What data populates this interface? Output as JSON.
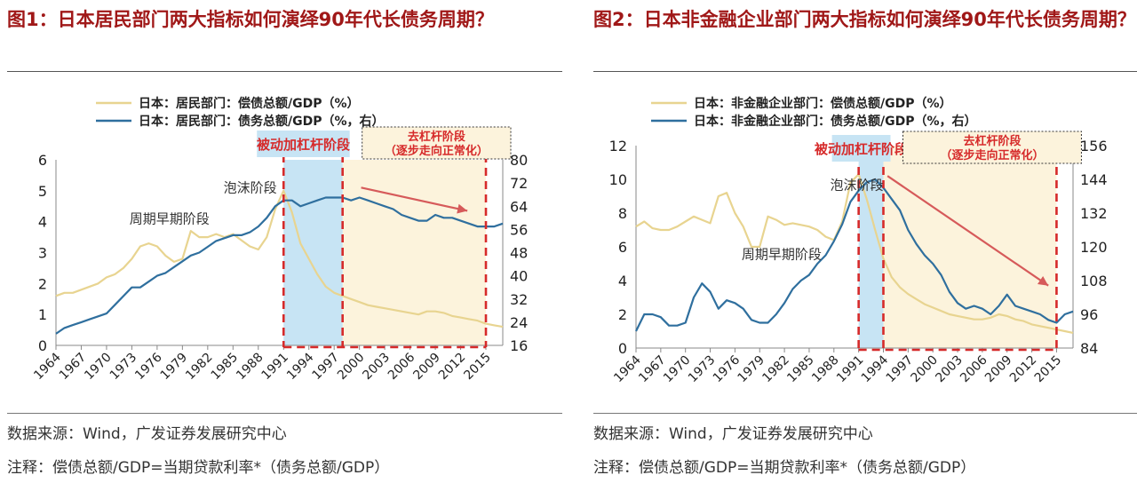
{
  "colors": {
    "title": "#a01818",
    "debt_service": "#e8d490",
    "debt": "#2f6f9e",
    "accent_red": "#d62a2a",
    "deleverage_bg": "#fcf3dc",
    "passive_bg": "#c7e4f4"
  },
  "charts": [
    {
      "title": "图1：日本居民部门两大指标如何演绎90年代长债务周期？",
      "source": "数据来源：Wind，广发证券发展研究中心",
      "note": "注释：偿债总额/GDP=当期贷款利率*（债务总额/GDP）",
      "legend": [
        "日本：居民部门：偿债总额/GDP（%）",
        "日本：居民部门：债务总额/GDP（%，右）"
      ],
      "box_passive": "被动加杠杆阶段",
      "box_delev": [
        "去杠杆阶段",
        "（逐步走向正常化）"
      ],
      "annotations": [
        "泡沫阶段",
        "周期早期阶段"
      ]
    },
    {
      "title": "图2：日本非金融企业部门两大指标如何演绎90年代长债务周期？",
      "source": "数据来源：Wind，广发证券发展研究中心",
      "note": "注释：偿债总额/GDP=当期贷款利率*（债务总额/GDP）",
      "legend": [
        "日本：非金融企业部门：偿债总额/GDP（%）",
        "日本：非金融企业部门：债务总额/GDP（%，右）"
      ],
      "box_passive": "被动加杠杆阶段",
      "box_delev": [
        "去杠杆阶段",
        "（逐步走向正常化）"
      ],
      "annotations": [
        "泡沫阶段",
        "周期早期阶段"
      ]
    }
  ],
  "chart_data": [
    {
      "type": "line",
      "x_ticks": [
        "1964",
        "1967",
        "1970",
        "1973",
        "1976",
        "1979",
        "1982",
        "1985",
        "1988",
        "1991",
        "1994",
        "1997",
        "2000",
        "2003",
        "2006",
        "2009",
        "2012",
        "2015"
      ],
      "xlim": [
        1964,
        2017
      ],
      "ylim_left": [
        0,
        6
      ],
      "yticks_left": [
        "0",
        "1",
        "2",
        "3",
        "4",
        "5",
        "6"
      ],
      "ylim_right": [
        16,
        80
      ],
      "yticks_right": [
        "16",
        "24",
        "32",
        "40",
        "48",
        "56",
        "64",
        "72",
        "80"
      ],
      "passive_period": [
        1991,
        1998
      ],
      "deleverage_period": [
        1998,
        2015
      ],
      "series": [
        {
          "name": "日本：居民部门：偿债总额/GDP（%）",
          "axis": "left",
          "x": [
            1964,
            1965,
            1966,
            1967,
            1968,
            1969,
            1970,
            1971,
            1972,
            1973,
            1974,
            1975,
            1976,
            1977,
            1978,
            1979,
            1980,
            1981,
            1982,
            1983,
            1984,
            1985,
            1986,
            1987,
            1988,
            1989,
            1990,
            1991,
            1992,
            1993,
            1994,
            1995,
            1996,
            1997,
            1998,
            1999,
            2000,
            2001,
            2002,
            2003,
            2004,
            2005,
            2006,
            2007,
            2008,
            2009,
            2010,
            2011,
            2012,
            2013,
            2014,
            2015,
            2016,
            2017
          ],
          "values": [
            1.6,
            1.7,
            1.7,
            1.8,
            1.9,
            2.0,
            2.2,
            2.3,
            2.5,
            2.8,
            3.2,
            3.3,
            3.2,
            2.9,
            2.7,
            2.8,
            3.7,
            3.5,
            3.5,
            3.6,
            3.5,
            3.6,
            3.4,
            3.2,
            3.1,
            3.5,
            4.4,
            5.0,
            4.3,
            3.3,
            2.8,
            2.3,
            1.9,
            1.7,
            1.6,
            1.5,
            1.4,
            1.3,
            1.25,
            1.2,
            1.15,
            1.1,
            1.05,
            1.0,
            1.1,
            1.1,
            1.05,
            0.95,
            0.9,
            0.85,
            0.8,
            0.7,
            0.65,
            0.6
          ]
        },
        {
          "name": "日本：居民部门：债务总额/GDP（%，右）",
          "axis": "right",
          "x": [
            1964,
            1965,
            1966,
            1967,
            1968,
            1969,
            1970,
            1971,
            1972,
            1973,
            1974,
            1975,
            1976,
            1977,
            1978,
            1979,
            1980,
            1981,
            1982,
            1983,
            1984,
            1985,
            1986,
            1987,
            1988,
            1989,
            1990,
            1991,
            1992,
            1993,
            1994,
            1995,
            1996,
            1997,
            1998,
            1999,
            2000,
            2001,
            2002,
            2003,
            2004,
            2005,
            2006,
            2007,
            2008,
            2009,
            2010,
            2011,
            2012,
            2013,
            2014,
            2015,
            2016,
            2017
          ],
          "values": [
            20,
            22,
            23,
            24,
            25,
            26,
            27,
            30,
            33,
            36,
            36,
            38,
            40,
            41,
            43,
            45,
            47,
            48,
            50,
            52,
            53,
            54,
            54,
            55,
            57,
            60,
            64,
            66,
            66,
            64,
            65,
            66,
            67,
            67,
            67,
            66,
            67,
            66,
            65,
            64,
            63,
            61,
            60,
            59,
            59,
            61,
            60,
            60,
            59,
            58,
            57,
            57,
            57,
            58
          ]
        }
      ]
    },
    {
      "type": "line",
      "x_ticks": [
        "1964",
        "1967",
        "1970",
        "1973",
        "1976",
        "1979",
        "1982",
        "1985",
        "1988",
        "1991",
        "1994",
        "1997",
        "2000",
        "2003",
        "2006",
        "2009",
        "2012",
        "2015"
      ],
      "xlim": [
        1964,
        2017
      ],
      "ylim_left": [
        0,
        12
      ],
      "yticks_left": [
        "0",
        "2",
        "4",
        "6",
        "8",
        "10",
        "12"
      ],
      "ylim_right": [
        84,
        156
      ],
      "yticks_right": [
        "84",
        "96",
        "108",
        "120",
        "132",
        "144",
        "156"
      ],
      "passive_period": [
        1991,
        1994
      ],
      "deleverage_period": [
        1994,
        2015
      ],
      "series": [
        {
          "name": "日本：非金融企业部门：偿债总额/GDP（%）",
          "axis": "left",
          "x": [
            1964,
            1965,
            1966,
            1967,
            1968,
            1969,
            1970,
            1971,
            1972,
            1973,
            1974,
            1975,
            1976,
            1977,
            1978,
            1979,
            1980,
            1981,
            1982,
            1983,
            1984,
            1985,
            1986,
            1987,
            1988,
            1989,
            1990,
            1991,
            1992,
            1993,
            1994,
            1995,
            1996,
            1997,
            1998,
            1999,
            2000,
            2001,
            2002,
            2003,
            2004,
            2005,
            2006,
            2007,
            2008,
            2009,
            2010,
            2011,
            2012,
            2013,
            2014,
            2015,
            2016,
            2017
          ],
          "values": [
            7.2,
            7.5,
            7.1,
            7.0,
            7.0,
            7.2,
            7.5,
            7.8,
            7.6,
            7.4,
            9.0,
            9.2,
            8.0,
            7.2,
            6.0,
            6.0,
            7.8,
            7.6,
            7.3,
            7.4,
            7.3,
            7.2,
            7.0,
            6.6,
            6.4,
            7.5,
            9.8,
            10.3,
            8.8,
            7.0,
            5.3,
            4.2,
            3.6,
            3.2,
            2.9,
            2.6,
            2.4,
            2.2,
            2.0,
            1.9,
            1.8,
            1.7,
            1.7,
            1.8,
            2.0,
            1.9,
            1.7,
            1.6,
            1.4,
            1.3,
            1.2,
            1.1,
            1.0,
            0.9
          ]
        },
        {
          "name": "日本：非金融企业部门：债务总额/GDP（%，右）",
          "axis": "right",
          "x": [
            1964,
            1965,
            1966,
            1967,
            1968,
            1969,
            1970,
            1971,
            1972,
            1973,
            1974,
            1975,
            1976,
            1977,
            1978,
            1979,
            1980,
            1981,
            1982,
            1983,
            1984,
            1985,
            1986,
            1987,
            1988,
            1989,
            1990,
            1991,
            1992,
            1993,
            1994,
            1995,
            1996,
            1997,
            1998,
            1999,
            2000,
            2001,
            2002,
            2003,
            2004,
            2005,
            2006,
            2007,
            2008,
            2009,
            2010,
            2011,
            2012,
            2013,
            2014,
            2015,
            2016,
            2017
          ],
          "values": [
            90,
            96,
            96,
            95,
            92,
            92,
            93,
            102,
            107,
            104,
            98,
            101,
            100,
            98,
            94,
            93,
            93,
            96,
            100,
            105,
            108,
            110,
            114,
            117,
            122,
            128,
            136,
            140,
            143,
            144,
            141,
            137,
            133,
            126,
            121,
            117,
            114,
            110,
            104,
            100,
            98,
            99,
            98,
            96,
            99,
            103,
            99,
            98,
            97,
            96,
            94,
            93,
            96,
            97
          ]
        }
      ]
    }
  ]
}
